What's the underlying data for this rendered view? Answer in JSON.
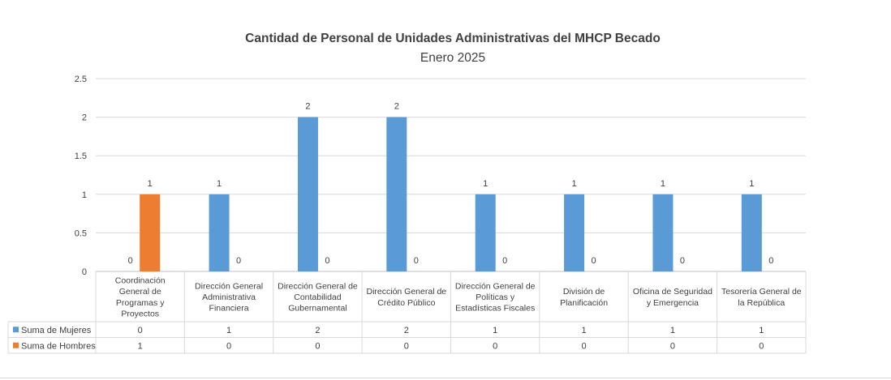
{
  "chart_data": {
    "type": "bar",
    "title": "Cantidad de Personal de Unidades Administrativas del MHCP Becado",
    "subtitle": "Enero 2025",
    "categories": [
      "Coordinación General de Programas y Proyectos",
      "Dirección General Administrativa Financiera",
      "Dirección General de Contabilidad Gubernamental",
      "Dirección General de Crédito Público",
      "Dirección General de Políticas y Estadísticas Fiscales",
      "División de Planificación",
      "Oficina de Seguridad y Emergencia",
      "Tesorería General de la República"
    ],
    "category_lines": [
      [
        "Coordinación",
        "General de",
        "Programas y",
        "Proyectos"
      ],
      [
        "Dirección General",
        "Administrativa",
        "Financiera"
      ],
      [
        "Dirección General de",
        "Contabilidad",
        "Gubernamental"
      ],
      [
        "Dirección General de",
        "Crédito Público"
      ],
      [
        "Dirección General de",
        "Políticas y",
        "Estadísticas Fiscales"
      ],
      [
        "División de",
        "Planificación"
      ],
      [
        "Oficina de Seguridad",
        "y Emergencia"
      ],
      [
        "Tesorería General de",
        "la República"
      ]
    ],
    "series": [
      {
        "name": "Suma de Mujeres",
        "color": "#5b9bd5",
        "values": [
          0,
          1,
          2,
          2,
          1,
          1,
          1,
          1
        ]
      },
      {
        "name": "Suma de Hombres",
        "color": "#ed7d31",
        "values": [
          1,
          0,
          0,
          0,
          0,
          0,
          0,
          0
        ]
      }
    ],
    "ylim": [
      0,
      2.5
    ],
    "yticks": [
      "0",
      "0.5",
      "1",
      "1.5",
      "2",
      "2.5"
    ],
    "ytick_values": [
      0,
      0.5,
      1,
      1.5,
      2,
      2.5
    ],
    "grid": true,
    "legend": "data-table-left"
  }
}
